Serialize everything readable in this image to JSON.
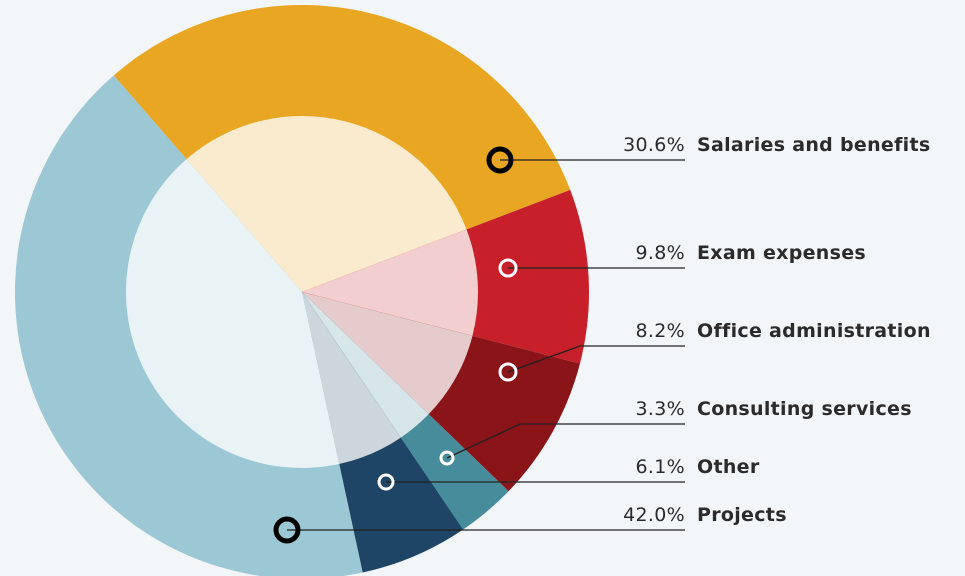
{
  "chart_data": {
    "type": "donut",
    "categories": [
      "Salaries and benefits",
      "Exam expenses",
      "Office administration",
      "Consulting services",
      "Other",
      "Projects"
    ],
    "values": [
      30.6,
      9.8,
      8.2,
      3.3,
      6.1,
      42.0
    ],
    "value_labels": [
      "30.6%",
      "9.8%",
      "8.2%",
      "3.3%",
      "6.1%",
      "42.0%"
    ],
    "colors": [
      "#e8a623",
      "#c8202a",
      "#8b1418",
      "#478c9a",
      "#1e4466",
      "#9cc7d4"
    ]
  }
}
